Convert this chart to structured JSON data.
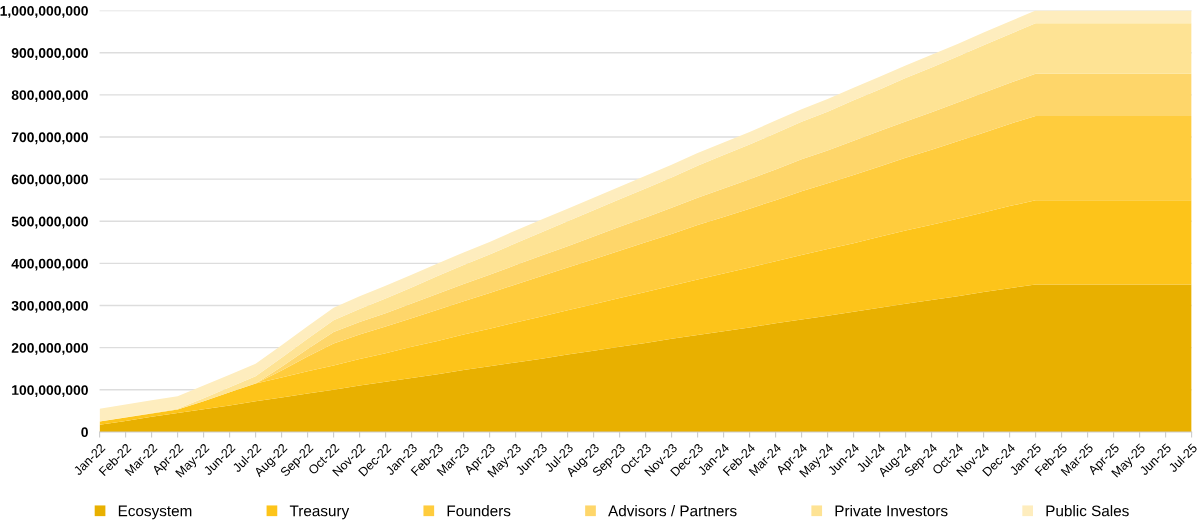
{
  "chart_data": {
    "type": "area",
    "stacked": true,
    "grid": "y",
    "legend": "bottom",
    "categories": [
      "Jan-22",
      "Feb-22",
      "Mar-22",
      "Apr-22",
      "May-22",
      "Jun-22",
      "Jul-22",
      "Aug-22",
      "Sep-22",
      "Oct-22",
      "Nov-22",
      "Dec-22",
      "Jan-23",
      "Feb-23",
      "Mar-23",
      "Apr-23",
      "May-23",
      "Jun-23",
      "Jul-23",
      "Aug-23",
      "Sep-23",
      "Oct-23",
      "Nov-23",
      "Dec-23",
      "Jan-24",
      "Feb-24",
      "Mar-24",
      "Apr-24",
      "May-24",
      "Jun-24",
      "Jul-24",
      "Aug-24",
      "Sep-24",
      "Oct-24",
      "Nov-24",
      "Dec-24",
      "Jan-25",
      "Feb-25",
      "Mar-25",
      "Apr-25",
      "May-25",
      "Jun-25",
      "Jul-25"
    ],
    "ylim": [
      0,
      1000000000
    ],
    "yticks": [
      {
        "value": 0,
        "label": "0"
      },
      {
        "value": 100000000,
        "label": "100,000,000"
      },
      {
        "value": 200000000,
        "label": "200,000,000"
      },
      {
        "value": 300000000,
        "label": "300,000,000"
      },
      {
        "value": 400000000,
        "label": "400,000,000"
      },
      {
        "value": 500000000,
        "label": "500,000,000"
      },
      {
        "value": 600000000,
        "label": "600,000,000"
      },
      {
        "value": 700000000,
        "label": "700,000,000"
      },
      {
        "value": 800000000,
        "label": "800,000,000"
      },
      {
        "value": 900000000,
        "label": "900,000,000"
      },
      {
        "value": 1000000000,
        "label": "1,000,000,000"
      }
    ],
    "series": [
      {
        "name": "Ecosystem",
        "color": "#e8b000",
        "values": [
          17000000,
          26000000,
          36000000,
          45000000,
          54000000,
          63000000,
          73000000,
          82000000,
          91000000,
          100000000,
          110000000,
          119000000,
          128000000,
          137000000,
          147000000,
          156000000,
          165000000,
          174000000,
          184000000,
          193000000,
          202000000,
          211000000,
          221000000,
          230000000,
          239000000,
          248000000,
          258000000,
          267000000,
          276000000,
          285000000,
          295000000,
          304000000,
          313000000,
          322000000,
          332000000,
          341000000,
          350000000,
          350000000,
          350000000,
          350000000,
          350000000,
          350000000,
          350000000
        ]
      },
      {
        "name": "Treasury",
        "color": "#fdc41a",
        "values": [
          8000000,
          8000000,
          8000000,
          8000000,
          19000000,
          31000000,
          42000000,
          47000000,
          53000000,
          58000000,
          63000000,
          68000000,
          74000000,
          79000000,
          84000000,
          89000000,
          95000000,
          100000000,
          105000000,
          110000000,
          116000000,
          121000000,
          126000000,
          132000000,
          137000000,
          142000000,
          147000000,
          153000000,
          158000000,
          163000000,
          168000000,
          174000000,
          179000000,
          184000000,
          189000000,
          195000000,
          200000000,
          200000000,
          200000000,
          200000000,
          200000000,
          200000000,
          200000000
        ]
      },
      {
        "name": "Founders",
        "color": "#ffcc3d",
        "values": [
          0,
          0,
          0,
          0,
          0,
          0,
          0,
          17000000,
          35000000,
          52000000,
          58000000,
          63000000,
          68000000,
          74000000,
          79000000,
          85000000,
          90000000,
          96000000,
          101000000,
          107000000,
          112000000,
          118000000,
          123000000,
          129000000,
          134000000,
          140000000,
          145000000,
          151000000,
          156000000,
          162000000,
          167000000,
          173000000,
          178000000,
          184000000,
          189000000,
          195000000,
          200000000,
          200000000,
          200000000,
          200000000,
          200000000,
          200000000,
          200000000
        ]
      },
      {
        "name": "Advisors / Partners",
        "color": "#fed66a",
        "values": [
          0,
          0,
          0,
          0,
          0,
          0,
          0,
          9000000,
          18000000,
          27000000,
          30000000,
          32000000,
          35000000,
          38000000,
          41000000,
          43000000,
          46000000,
          49000000,
          51000000,
          54000000,
          57000000,
          59000000,
          62000000,
          65000000,
          68000000,
          70000000,
          73000000,
          76000000,
          78000000,
          81000000,
          84000000,
          86000000,
          89000000,
          92000000,
          95000000,
          97000000,
          100000000,
          100000000,
          100000000,
          100000000,
          100000000,
          100000000,
          100000000
        ]
      },
      {
        "name": "Private Investors",
        "color": "#fee394",
        "values": [
          0,
          1000000,
          1000000,
          2000000,
          7000000,
          12000000,
          17000000,
          21000000,
          24000000,
          28000000,
          31000000,
          35000000,
          38000000,
          42000000,
          45000000,
          48000000,
          52000000,
          55000000,
          59000000,
          62000000,
          65000000,
          69000000,
          72000000,
          76000000,
          79000000,
          82000000,
          86000000,
          89000000,
          92000000,
          96000000,
          99000000,
          103000000,
          106000000,
          109000000,
          113000000,
          116000000,
          120000000,
          120000000,
          120000000,
          120000000,
          120000000,
          120000000,
          120000000
        ]
      },
      {
        "name": "Public Sales",
        "color": "#feedbe",
        "values": [
          30000000,
          30000000,
          30000000,
          30000000,
          30000000,
          30000000,
          30000000,
          30000000,
          30000000,
          30000000,
          30000000,
          30000000,
          30000000,
          30000000,
          30000000,
          30000000,
          30000000,
          30000000,
          30000000,
          30000000,
          30000000,
          30000000,
          30000000,
          30000000,
          30000000,
          30000000,
          30000000,
          30000000,
          30000000,
          30000000,
          30000000,
          30000000,
          30000000,
          30000000,
          30000000,
          30000000,
          30000000,
          30000000,
          30000000,
          30000000,
          30000000,
          30000000,
          30000000
        ]
      }
    ]
  }
}
